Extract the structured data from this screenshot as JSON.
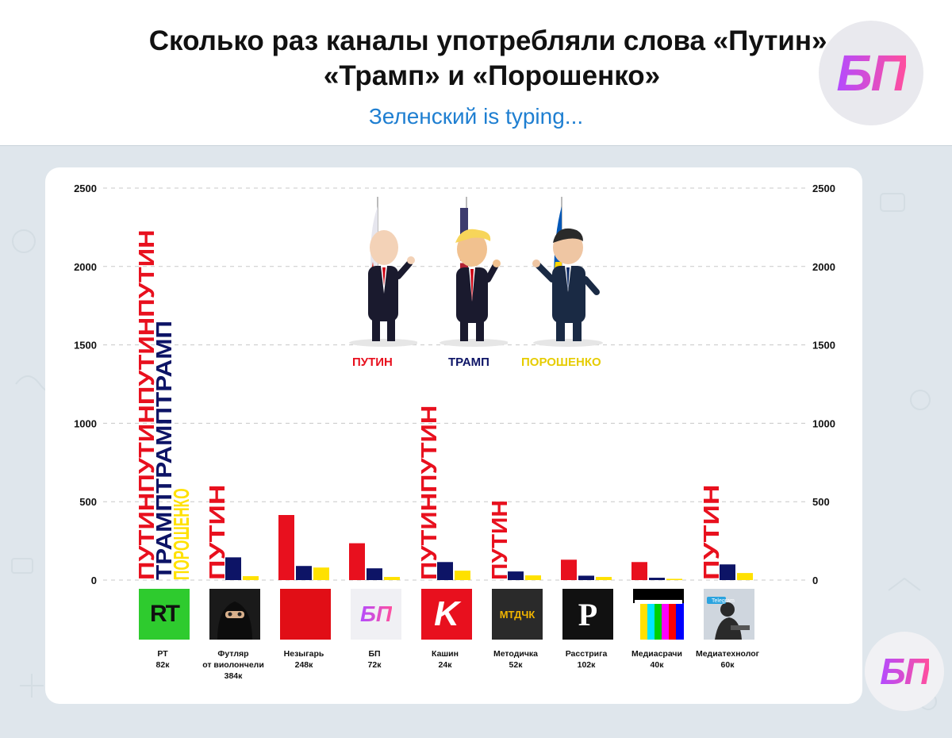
{
  "header": {
    "title": "Сколько раз каналы употребляли слова «Путин», «Трамп» и «Порошенко»",
    "subtitle": "Зеленский is typing...",
    "logo_text": "БП"
  },
  "colors": {
    "putin": "#e8101e",
    "trump": "#0d1466",
    "poroshenko": "#ffe100"
  },
  "legend": [
    {
      "name": "ПУТИН",
      "color": "#e8101e"
    },
    {
      "name": "ТРАМП",
      "color": "#0d1466"
    },
    {
      "name": "ПОРОШЕНКО",
      "color": "#ffe100"
    }
  ],
  "chart_data": {
    "type": "bar",
    "title": "Сколько раз каналы употребляли слова «Путин», «Трамп» и «Порошенко»",
    "subtitle": "Зеленский is typing...",
    "ylim": [
      0,
      2500
    ],
    "yticks": [
      0,
      500,
      1000,
      1500,
      2000,
      2500
    ],
    "grid": true,
    "legend_position": "top-center",
    "categories": [
      "РТ",
      "Футляр от виолончели",
      "Незыгарь",
      "БП",
      "Кашин",
      "Методичка",
      "Расстрига",
      "Медиасрачи",
      "Медиатехнолог"
    ],
    "subscribers": [
      "82к",
      "384к",
      "248к",
      "72к",
      "24к",
      "52к",
      "102к",
      "40к",
      "60к"
    ],
    "series": [
      {
        "name": "ПУТИН",
        "values": [
          2235,
          610,
          415,
          235,
          1115,
          510,
          130,
          115,
          610
        ],
        "bar_label": "ПУТИН"
      },
      {
        "name": "ТРАМП",
        "values": [
          1655,
          145,
          90,
          75,
          115,
          55,
          28,
          15,
          100
        ],
        "bar_label": "ТРАМП"
      },
      {
        "name": "ПОРОШЕНКО",
        "values": [
          585,
          25,
          80,
          20,
          60,
          30,
          20,
          8,
          45
        ],
        "bar_label": "ПОРОШЕНКО"
      }
    ]
  },
  "channels": [
    {
      "name": "РТ",
      "subs": "82к",
      "logo": "RT"
    },
    {
      "name": "Футляр\nот виолончели",
      "subs": "384к",
      "logo": "balaclava"
    },
    {
      "name": "Незыгарь",
      "subs": "248к",
      "logo": "red-square"
    },
    {
      "name": "БП",
      "subs": "72к",
      "logo": "БП"
    },
    {
      "name": "Кашин",
      "subs": "24к",
      "logo": "K"
    },
    {
      "name": "Методичка",
      "subs": "52к",
      "logo": "МТДЧК"
    },
    {
      "name": "Расстрига",
      "subs": "102к",
      "logo": "P"
    },
    {
      "name": "Медиасрачи",
      "subs": "40к",
      "logo": "color-bars"
    },
    {
      "name": "Медиатехнолог",
      "subs": "60к",
      "logo": "Telegram"
    }
  ]
}
